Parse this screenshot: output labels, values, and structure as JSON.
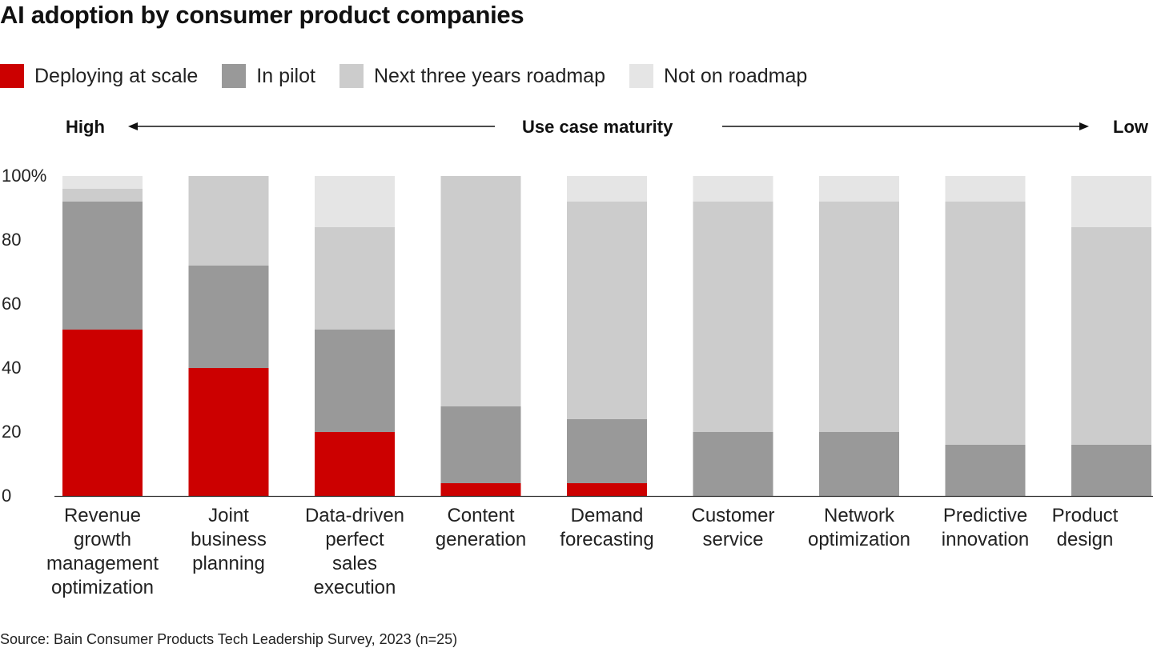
{
  "title": "AI adoption by consumer product companies",
  "legend": [
    {
      "label": "Deploying at scale",
      "color": "#cc0000"
    },
    {
      "label": "In pilot",
      "color": "#999999"
    },
    {
      "label": "Next three years roadmap",
      "color": "#cccccc"
    },
    {
      "label": "Not on roadmap",
      "color": "#e5e5e5"
    }
  ],
  "maturity": {
    "high": "High",
    "center": "Use case maturity",
    "low": "Low"
  },
  "source": "Source: Bain Consumer Products Tech Leadership Survey, 2023 (n=25)",
  "chart_data": {
    "type": "bar",
    "stacked": true,
    "title": "AI adoption by consumer product companies",
    "xlabel": "",
    "ylabel": "",
    "ylim": [
      0,
      100
    ],
    "yticks": [
      "0",
      "20",
      "40",
      "60",
      "80",
      "100%"
    ],
    "categories": [
      "Revenue\ngrowth\nmanagement\noptimization",
      "Joint\nbusiness\nplanning",
      "Data-driven\nperfect\nsales\nexecution",
      "Content\ngeneration",
      "Demand\nforecasting",
      "Customer\nservice",
      "Network\noptimization",
      "Predictive\ninnovation",
      "Product\ndesign"
    ],
    "series": [
      {
        "name": "Deploying at scale",
        "color": "#cc0000",
        "values": [
          52,
          40,
          20,
          4,
          4,
          0,
          0,
          0,
          0
        ]
      },
      {
        "name": "In pilot",
        "color": "#999999",
        "values": [
          40,
          32,
          32,
          24,
          20,
          20,
          20,
          16,
          16
        ]
      },
      {
        "name": "Next three years roadmap",
        "color": "#cccccc",
        "values": [
          4,
          28,
          32,
          72,
          68,
          72,
          72,
          76,
          68
        ]
      },
      {
        "name": "Not on roadmap",
        "color": "#e5e5e5",
        "values": [
          4,
          0,
          16,
          0,
          8,
          8,
          8,
          8,
          16
        ]
      }
    ]
  }
}
